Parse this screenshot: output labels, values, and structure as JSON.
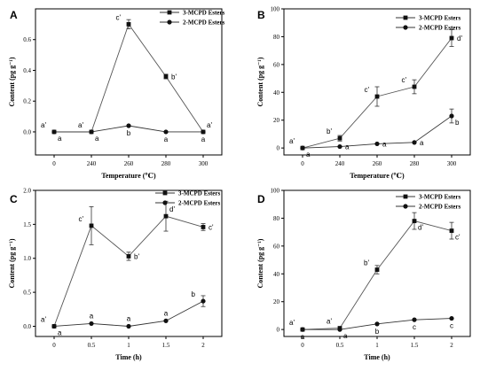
{
  "chart_data": [
    {
      "panel": "A",
      "type": "line",
      "xlabel": "Temperature (℃)",
      "ylabel": "Content (pg g⁻¹)",
      "x": [
        "0",
        "240",
        "260",
        "280",
        "300"
      ],
      "ylim": [
        -0.15,
        0.8
      ],
      "yticks": [
        "0.0",
        "0.2",
        "0.4",
        "0.6"
      ],
      "ytick_values": [
        0,
        0.2,
        0.4,
        0.6
      ],
      "legend_position": "top-right",
      "series": [
        {
          "name": "3-MCPD Esters",
          "marker": "square",
          "values": [
            0,
            0,
            0.7,
            0.36,
            0
          ],
          "errors": [
            0,
            0,
            0.03,
            0.015,
            0
          ],
          "labels": [
            "a'",
            "a'",
            "c'",
            "b'",
            "a'"
          ],
          "label_side": [
            "above-left",
            "above-left",
            "above-left",
            "right",
            "above-right"
          ]
        },
        {
          "name": "2-MCPD Esters",
          "marker": "circle",
          "values": [
            0,
            0,
            0.04,
            0,
            0
          ],
          "errors": [
            0,
            0,
            0,
            0,
            0
          ],
          "labels": [
            "a",
            "a",
            "b",
            "a",
            "a"
          ],
          "label_side": [
            "below-right",
            "below-right",
            "below",
            "below",
            "below"
          ]
        }
      ]
    },
    {
      "panel": "B",
      "type": "line",
      "xlabel": "Temperature (℃)",
      "ylabel": "Content (pg g⁻¹)",
      "x": [
        "0",
        "240",
        "260",
        "280",
        "300"
      ],
      "ylim": [
        -5,
        100
      ],
      "yticks": [
        "0",
        "20",
        "40",
        "60",
        "80",
        "100"
      ],
      "ytick_values": [
        0,
        20,
        40,
        60,
        80,
        100
      ],
      "legend_position": "top-center",
      "series": [
        {
          "name": "3-MCPD Esters",
          "marker": "square",
          "values": [
            0,
            7,
            37,
            44,
            79
          ],
          "errors": [
            0,
            2,
            7,
            5,
            6
          ],
          "labels": [
            "a'",
            "b'",
            "c'",
            "c'",
            "d'"
          ],
          "label_side": [
            "above-left",
            "above-left",
            "above-left",
            "above-left",
            "right"
          ]
        },
        {
          "name": "2-MCPD Esters",
          "marker": "circle",
          "values": [
            0,
            1,
            3,
            4,
            23
          ],
          "errors": [
            0,
            0,
            0,
            0,
            5
          ],
          "labels": [
            "a",
            "a",
            "a",
            "a",
            "b"
          ],
          "label_side": [
            "below-right",
            "right",
            "right",
            "right",
            "below-right"
          ]
        }
      ]
    },
    {
      "panel": "C",
      "type": "line",
      "xlabel": "Time (h)",
      "ylabel": "Content (pg g⁻¹)",
      "x": [
        "0",
        "0.5",
        "1",
        "1.5",
        "2"
      ],
      "ylim": [
        -0.15,
        2.0
      ],
      "yticks": [
        "0.0",
        "0.5",
        "1.0",
        "1.5",
        "2.0"
      ],
      "ytick_values": [
        0,
        0.5,
        1.0,
        1.5,
        2.0
      ],
      "legend_position": "top-right",
      "series": [
        {
          "name": "3-MCPD Esters",
          "marker": "square",
          "values": [
            0,
            1.48,
            1.03,
            1.62,
            1.46
          ],
          "errors": [
            0,
            0.28,
            0.06,
            0.22,
            0.05
          ],
          "labels": [
            "a'",
            "c'",
            "b'",
            "d'",
            "c'"
          ],
          "label_side": [
            "above-left",
            "above-left",
            "right",
            "above-right",
            "right"
          ]
        },
        {
          "name": "2-MCPD Esters",
          "marker": "circle",
          "values": [
            0,
            0.04,
            0,
            0.08,
            0.37
          ],
          "errors": [
            0,
            0,
            0,
            0,
            0.08
          ],
          "labels": [
            "a",
            "a",
            "a",
            "a",
            "b"
          ],
          "label_side": [
            "below-right",
            "above",
            "above",
            "above",
            "above-left"
          ]
        }
      ]
    },
    {
      "panel": "D",
      "type": "line",
      "xlabel": "Time (h)",
      "ylabel": "Content (pg g⁻¹)",
      "x": [
        "0",
        "0.5",
        "1",
        "1.5",
        "2"
      ],
      "ylim": [
        -5,
        100
      ],
      "yticks": [
        "0",
        "20",
        "40",
        "60",
        "80",
        "100"
      ],
      "ytick_values": [
        0,
        20,
        40,
        60,
        80,
        100
      ],
      "legend_position": "top-right",
      "series": [
        {
          "name": "3-MCPD Esters",
          "marker": "square",
          "values": [
            0,
            1,
            43,
            78,
            71
          ],
          "errors": [
            0,
            0,
            3,
            6,
            6
          ],
          "labels": [
            "a'",
            "a'",
            "b'",
            "d'",
            "c'"
          ],
          "label_side": [
            "above-left",
            "above-left",
            "above-left",
            "below-right",
            "below-right"
          ]
        },
        {
          "name": "2-MCPD Esters",
          "marker": "circle",
          "values": [
            0,
            0,
            4,
            7,
            8
          ],
          "errors": [
            0,
            0,
            0,
            0,
            0
          ],
          "labels": [
            "a",
            "a",
            "b",
            "c",
            "c"
          ],
          "label_side": [
            "below",
            "below-right",
            "below",
            "below",
            "below"
          ]
        }
      ]
    }
  ]
}
